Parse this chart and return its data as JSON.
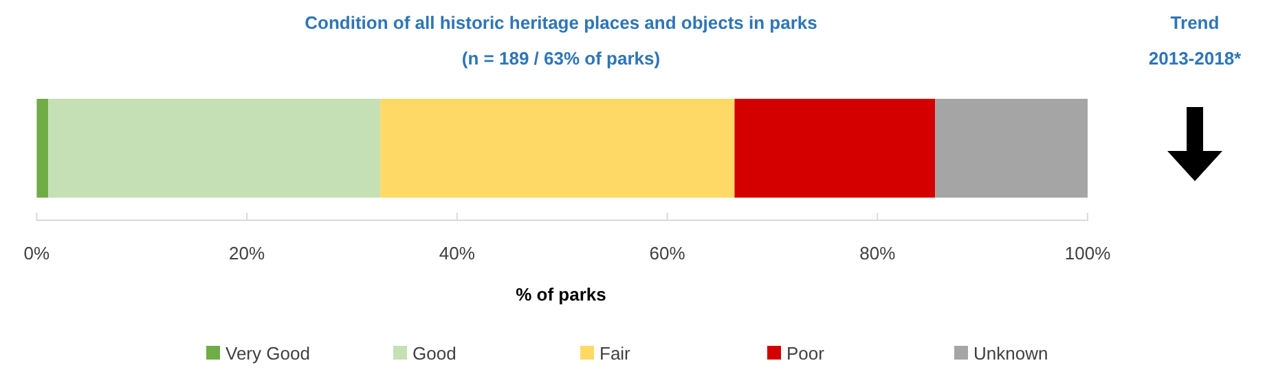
{
  "chart_data": {
    "type": "bar",
    "orientation": "horizontal",
    "stacked": true,
    "title": "Condition of all historic heritage places and objects in parks",
    "subtitle": "(n = 189 / 63% of parks)",
    "xlabel": "% of parks",
    "categories": [
      null
    ],
    "series": [
      {
        "name": "Very Good",
        "color": "#70ad47",
        "values": [
          1.1
        ]
      },
      {
        "name": "Good",
        "color": "#c5e0b4",
        "values": [
          31.6
        ]
      },
      {
        "name": "Fair",
        "color": "#ffd966",
        "values": [
          33.7
        ]
      },
      {
        "name": "Poor",
        "color": "#d40000",
        "values": [
          19.1
        ]
      },
      {
        "name": "Unknown",
        "color": "#a5a5a5",
        "values": [
          14.5
        ]
      }
    ],
    "xlim": [
      0,
      100
    ],
    "xticks": [
      {
        "value": 0,
        "label": "0%"
      },
      {
        "value": 20,
        "label": "20%"
      },
      {
        "value": 40,
        "label": "40%"
      },
      {
        "value": 60,
        "label": "60%"
      },
      {
        "value": 80,
        "label": "80%"
      },
      {
        "value": 100,
        "label": "100%"
      }
    ],
    "legend": "bottom",
    "annotations": [
      "Trend\n2013-2018*"
    ]
  }
}
